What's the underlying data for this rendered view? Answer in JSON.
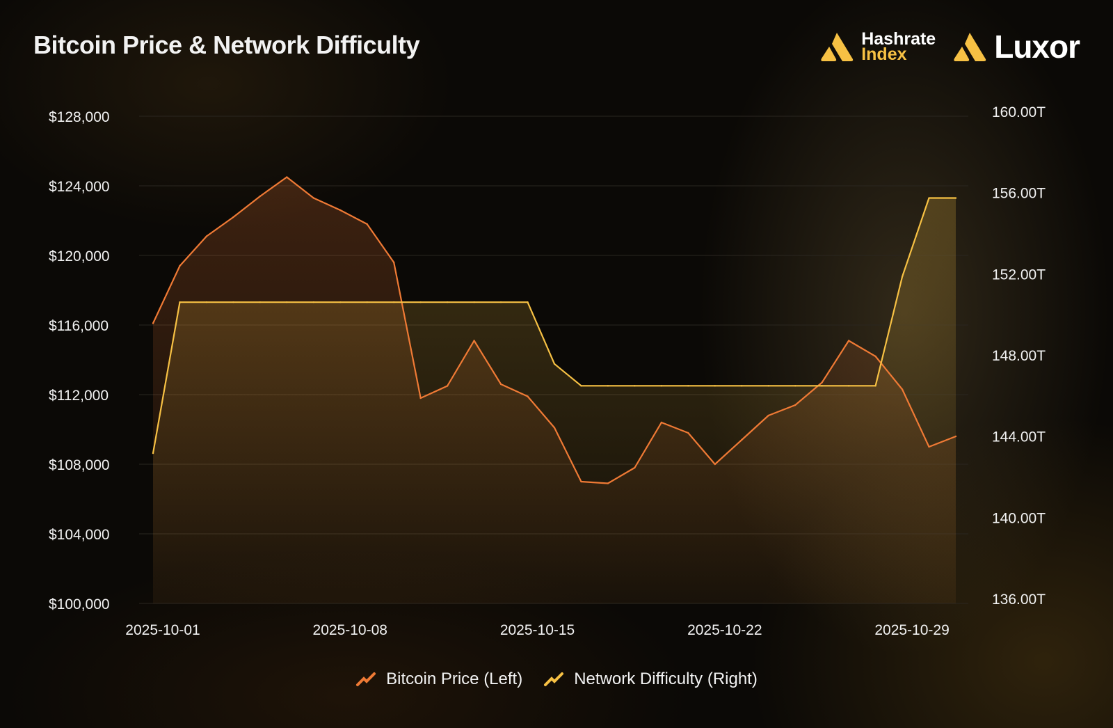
{
  "title": "Bitcoin Price & Network Difficulty",
  "logos": {
    "hashrate_line1": "Hashrate",
    "hashrate_line2": "Index",
    "luxor": "Luxor"
  },
  "colors": {
    "price": "#ef7a35",
    "difficulty": "#f7c144",
    "grid": "#2a2620",
    "text": "#f2f2f2"
  },
  "chart_data": {
    "type": "line",
    "title": "Bitcoin Price & Network Difficulty",
    "x": [
      "2025-10-01",
      "2025-10-02",
      "2025-10-03",
      "2025-10-04",
      "2025-10-05",
      "2025-10-06",
      "2025-10-07",
      "2025-10-08",
      "2025-10-09",
      "2025-10-10",
      "2025-10-11",
      "2025-10-12",
      "2025-10-13",
      "2025-10-14",
      "2025-10-15",
      "2025-10-16",
      "2025-10-17",
      "2025-10-18",
      "2025-10-19",
      "2025-10-20",
      "2025-10-21",
      "2025-10-22",
      "2025-10-23",
      "2025-10-24",
      "2025-10-25",
      "2025-10-26",
      "2025-10-27",
      "2025-10-28",
      "2025-10-29",
      "2025-10-30",
      "2025-10-31"
    ],
    "x_tick_labels": [
      "2025-10-01",
      "2025-10-08",
      "2025-10-15",
      "2025-10-22",
      "2025-10-29"
    ],
    "series": [
      {
        "name": "Bitcoin Price (Left)",
        "axis": "left",
        "values": [
          116100,
          119400,
          121100,
          122200,
          123400,
          124500,
          123300,
          122600,
          121800,
          119600,
          111800,
          112500,
          115100,
          112600,
          111900,
          110100,
          107000,
          106900,
          107800,
          110400,
          109800,
          108000,
          109400,
          110800,
          111400,
          112700,
          115100,
          114200,
          112300,
          109000,
          109600
        ]
      },
      {
        "name": "Network Difficulty (Right)",
        "axis": "right",
        "values": [
          143.4,
          150.84,
          150.84,
          150.84,
          150.84,
          150.84,
          150.84,
          150.84,
          150.84,
          150.84,
          150.84,
          150.84,
          150.84,
          150.84,
          150.84,
          147.8,
          146.72,
          146.72,
          146.72,
          146.72,
          146.72,
          146.72,
          146.72,
          146.72,
          146.72,
          146.72,
          146.72,
          146.72,
          152.1,
          155.97,
          155.97
        ]
      }
    ],
    "y_left": {
      "range": [
        100000,
        128000
      ],
      "ticks": [
        "$100,000",
        "$104,000",
        "$108,000",
        "$112,000",
        "$116,000",
        "$120,000",
        "$124,000",
        "$128,000"
      ]
    },
    "y_right": {
      "range": [
        136,
        160
      ],
      "ticks": [
        "136.00T",
        "140.00T",
        "144.00T",
        "148.00T",
        "152.00T",
        "156.00T",
        "160.00T"
      ]
    },
    "grid": true,
    "legend": "bottom-center"
  }
}
